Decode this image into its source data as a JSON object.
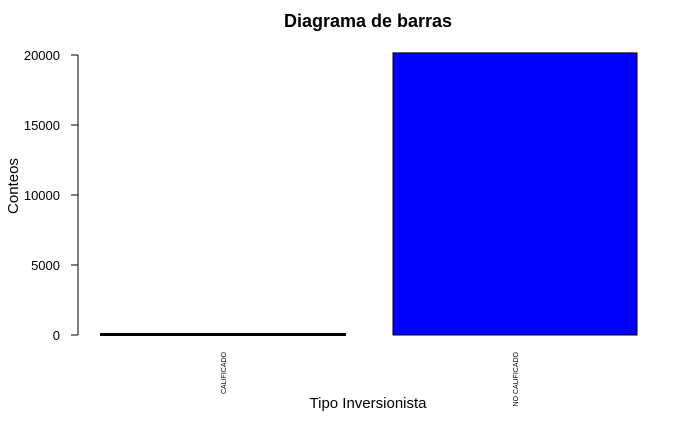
{
  "chart_data": {
    "type": "bar",
    "title": "Diagrama de barras",
    "xlabel": "Tipo Inversionista",
    "ylabel": "Conteos",
    "categories": [
      "CALIFICADO",
      "NO CALIFICADO"
    ],
    "values": [
      40,
      20150
    ],
    "ylim": [
      0,
      20000
    ],
    "yticks": [
      "0",
      "5000",
      "10000",
      "15000",
      "20000"
    ],
    "grid": false,
    "legend": "none",
    "bar_color": "#0000ff",
    "bar_border": "#000000"
  }
}
